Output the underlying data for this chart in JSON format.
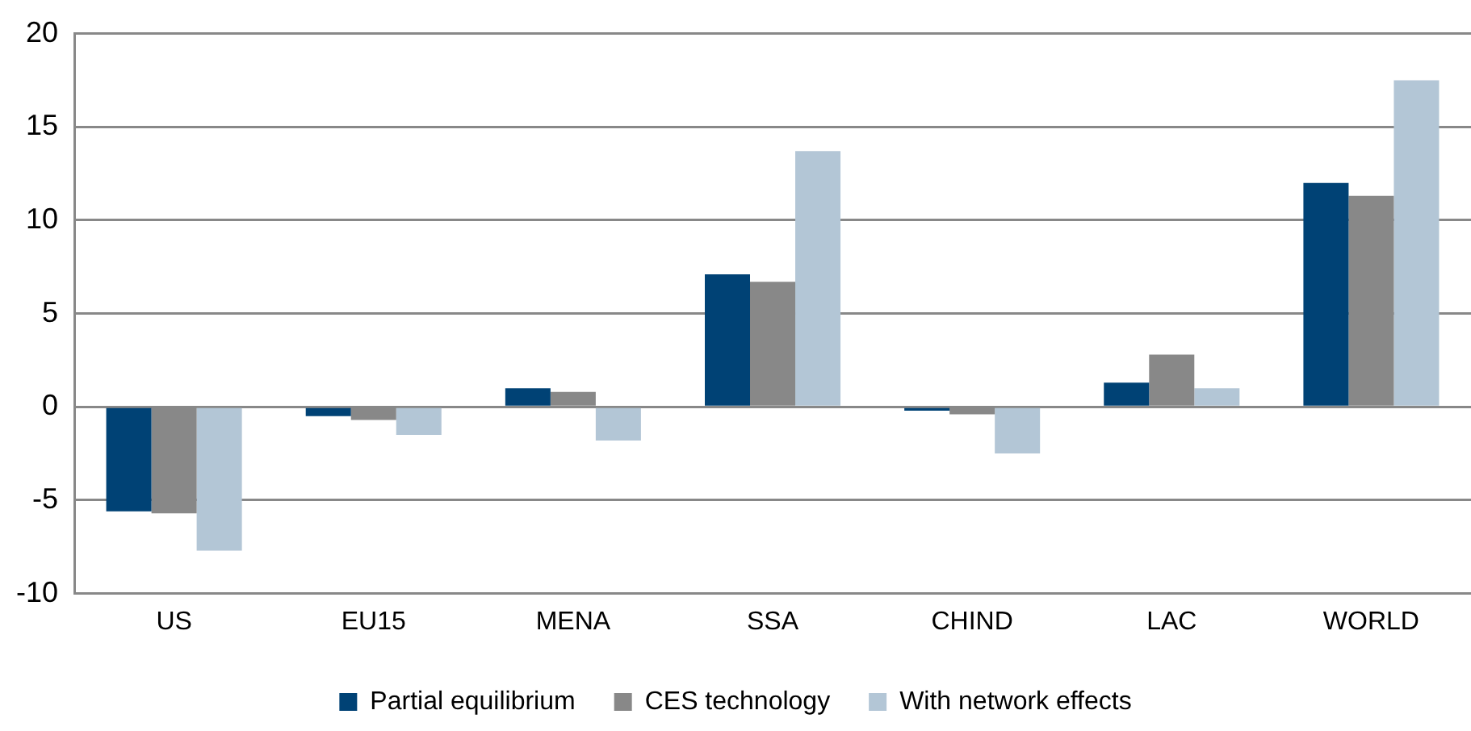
{
  "chart_data": {
    "type": "bar",
    "categories": [
      "US",
      "EU15",
      "MENA",
      "SSA",
      "CHIND",
      "LAC",
      "WORLD"
    ],
    "series": [
      {
        "name": "Partial equilibrium",
        "color": "#004275",
        "values": [
          -5.6,
          -0.5,
          1.0,
          7.1,
          -0.2,
          1.3,
          12.0
        ]
      },
      {
        "name": "CES technology",
        "color": "#888888",
        "values": [
          -5.7,
          -0.7,
          0.8,
          6.7,
          -0.4,
          2.8,
          11.3
        ]
      },
      {
        "name": "With network effects",
        "color": "#b3c6d6",
        "values": [
          -7.7,
          -1.5,
          -1.8,
          13.7,
          -2.5,
          1.0,
          17.5
        ]
      }
    ],
    "ylim": [
      -10,
      20
    ],
    "yticks": [
      -10,
      -5,
      0,
      5,
      10,
      15,
      20
    ],
    "grid": "y",
    "legend": "bottom"
  }
}
